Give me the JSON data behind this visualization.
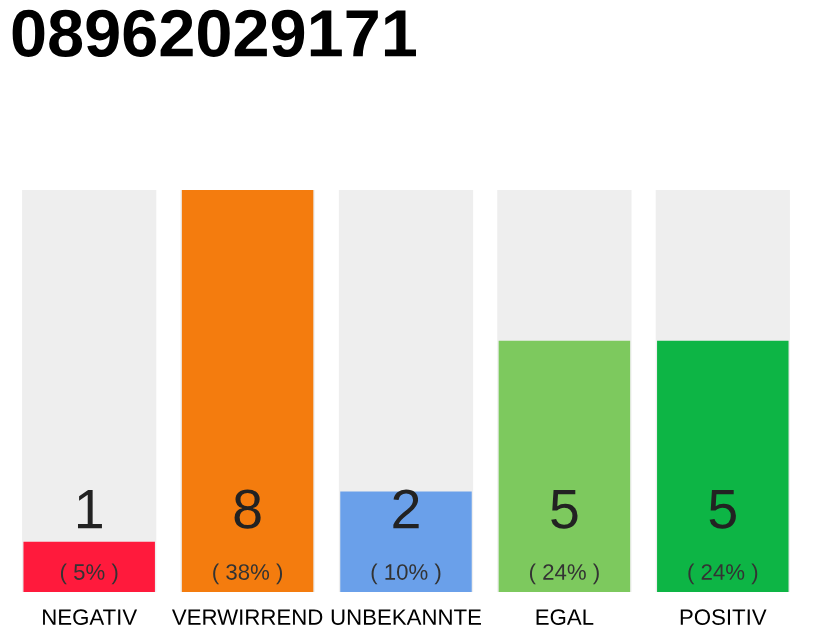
{
  "chart_data": {
    "type": "bar",
    "title": "08962029171",
    "categories": [
      "NEGATIV",
      "VERWIRREND",
      "UNBEKANNTE",
      "EGAL",
      "POSITIV"
    ],
    "values": [
      1,
      8,
      2,
      5,
      5
    ],
    "colors": [
      "#ff1a3c",
      "#f47c0e",
      "#6aa0ea",
      "#7dc95e",
      "#0db545"
    ],
    "ylim": [
      0,
      8
    ],
    "data_labels": true,
    "annotations": [
      "( 5% )",
      "( 38% )",
      "( 10% )",
      "( 24% )",
      "( 24% )"
    ],
    "grid": false,
    "legend": false
  }
}
